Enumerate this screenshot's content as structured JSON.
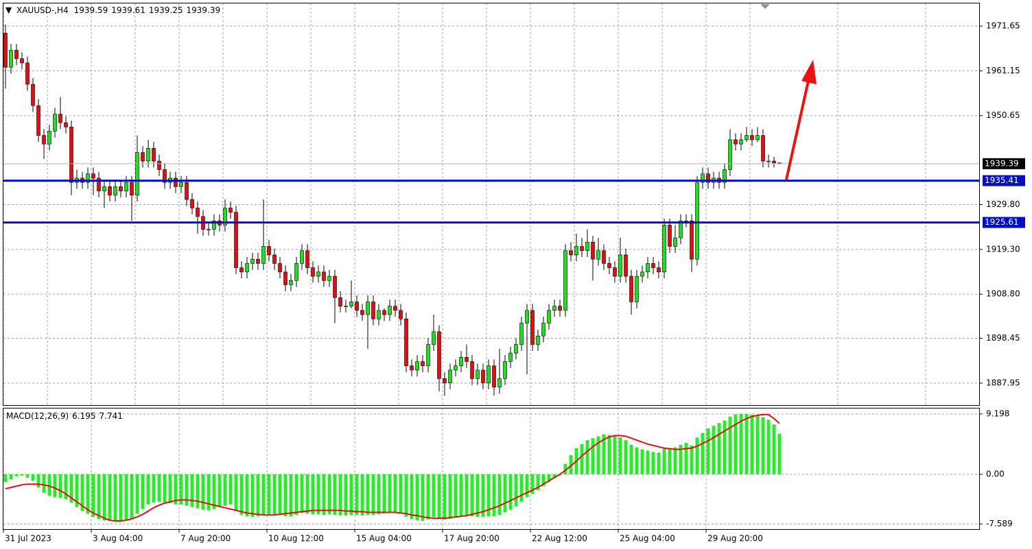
{
  "chart_data": [
    {
      "type": "candlestick",
      "title": "XAUUSD-,H4",
      "open": [
        1970,
        1962,
        1966,
        1964,
        1963,
        1958,
        1953,
        1946,
        1944,
        1947,
        1951,
        1949,
        1948,
        1935,
        1936,
        1935,
        1937,
        1936,
        1933,
        1934,
        1932,
        1934,
        1933,
        1935,
        1932,
        1942,
        1940,
        1943,
        1940,
        1938,
        1935,
        1936,
        1934,
        1935,
        1931,
        1929,
        1927,
        1924,
        1924,
        1926,
        1925,
        1929,
        1928,
        1915,
        1914,
        1916,
        1917,
        1916,
        1920,
        1918,
        1916,
        1914,
        1911,
        1912,
        1916,
        1919,
        1915,
        1913,
        1914,
        1912,
        1913,
        1908,
        1906,
        1906,
        1907,
        1905,
        1904,
        1907,
        1903,
        1905,
        1904,
        1906,
        1905,
        1903,
        1892,
        1891,
        1893,
        1892,
        1897,
        1900,
        1889,
        1888,
        1891,
        1892,
        1894,
        1893,
        1889,
        1891,
        1888,
        1892,
        1887,
        1889,
        1893,
        1895,
        1897,
        1902,
        1905,
        1897,
        1899,
        1902,
        1905,
        1906,
        1905,
        1919,
        1918,
        1920,
        1919,
        1921,
        1917,
        1919,
        1916,
        1915,
        1913,
        1918,
        1913,
        1907,
        1913,
        1914,
        1916,
        1915,
        1914,
        1925,
        1920,
        1922,
        1926,
        1926,
        1917,
        1935,
        1937,
        1935,
        1936,
        1935,
        1938,
        1945,
        1944,
        1945,
        1946,
        1945,
        1946,
        1940,
        1940,
        1939.59
      ],
      "high": [
        1972,
        1967.5,
        1967.5,
        1965.5,
        1964.5,
        1959.5,
        1954.5,
        1947.5,
        1948.5,
        1952.5,
        1955,
        1950.5,
        1949.5,
        1938,
        1937.5,
        1938.5,
        1938.5,
        1937.5,
        1935.5,
        1935.5,
        1935.5,
        1935.5,
        1936.5,
        1936.5,
        1946,
        1943.5,
        1945,
        1944.5,
        1941.5,
        1939.5,
        1937.5,
        1937.5,
        1936.5,
        1936.5,
        1932.5,
        1930.5,
        1928.5,
        1925.5,
        1927.5,
        1927.5,
        1931,
        1930.5,
        1929.5,
        1916.5,
        1917.5,
        1918.5,
        1918.5,
        1931,
        1921.5,
        1919.5,
        1917.5,
        1915.5,
        1913.5,
        1917.5,
        1920.5,
        1920.5,
        1916.5,
        1915.5,
        1915.5,
        1914.5,
        1914.5,
        1909.5,
        1907.5,
        1912,
        1908.5,
        1906.5,
        1908.5,
        1908.5,
        1906.5,
        1905.5,
        1907.5,
        1907.5,
        1906.5,
        1904.5,
        1893.5,
        1894.5,
        1894.5,
        1898.5,
        1904,
        1901.5,
        1890.5,
        1892.5,
        1893.5,
        1895.5,
        1897,
        1894.5,
        1892.5,
        1892.5,
        1893.5,
        1893.5,
        1896,
        1894.5,
        1896.5,
        1898.5,
        1903.5,
        1906.5,
        1906.5,
        1900.5,
        1903.5,
        1906.5,
        1907.5,
        1907.5,
        1920.5,
        1921,
        1923,
        1922,
        1924,
        1922.5,
        1922,
        1920.5,
        1917.5,
        1916.5,
        1922,
        1919.5,
        1914.5,
        1914.5,
        1915.5,
        1917.5,
        1917.5,
        1916.5,
        1926.5,
        1926.5,
        1925,
        1927.5,
        1927.5,
        1927.5,
        1936.5,
        1938.5,
        1938.5,
        1937.5,
        1937.5,
        1939.5,
        1947.5,
        1946.5,
        1946.5,
        1948,
        1947.5,
        1948,
        1947.5,
        1941.5,
        1941,
        1939.61
      ],
      "low": [
        1957,
        1960.5,
        1962.5,
        1961.5,
        1956.5,
        1951.5,
        1944.5,
        1940.5,
        1942.5,
        1945.5,
        1947.5,
        1946.5,
        1932,
        1933.5,
        1933.5,
        1933.5,
        1932,
        1931.5,
        1929,
        1930.5,
        1930.5,
        1931.5,
        1931.5,
        1926,
        1930.5,
        1938.5,
        1938.5,
        1938.5,
        1936.5,
        1933.5,
        1933.5,
        1932.5,
        1932.5,
        1929.5,
        1927.5,
        1923,
        1922.5,
        1922.5,
        1922.5,
        1923.5,
        1923.5,
        1926.5,
        1913.5,
        1912.5,
        1912.5,
        1914.5,
        1914.5,
        1914.5,
        1916.5,
        1914.5,
        1912.5,
        1909.5,
        1909.5,
        1910.5,
        1914.5,
        1913.5,
        1911.5,
        1911.5,
        1910.5,
        1910.5,
        1902,
        1904.5,
        1904.5,
        1905.5,
        1903.5,
        1902.5,
        1896,
        1901.5,
        1901.5,
        1902.5,
        1902.5,
        1903.5,
        1901.5,
        1890.5,
        1889.5,
        1889.5,
        1890.5,
        1890.5,
        1895.5,
        1886,
        1885,
        1886.5,
        1889.5,
        1890.5,
        1891.5,
        1887.5,
        1887.5,
        1886.5,
        1886.5,
        1885,
        1885.5,
        1887.5,
        1891.5,
        1893.5,
        1895.5,
        1890,
        1895.5,
        1895.5,
        1897.5,
        1900.5,
        1903.5,
        1903.5,
        1903.5,
        1916.5,
        1916.5,
        1917.5,
        1917.5,
        1912,
        1915.5,
        1914.5,
        1913.5,
        1911.5,
        1911.5,
        1911.5,
        1904,
        1905.5,
        1911.5,
        1912.5,
        1913.5,
        1912.5,
        1912.5,
        1918.5,
        1918.5,
        1920.5,
        1924.5,
        1914,
        1915.5,
        1933.5,
        1933.5,
        1933.5,
        1933.5,
        1933.5,
        1936.5,
        1942.5,
        1942.5,
        1944.5,
        1943.5,
        1944.5,
        1938.5,
        1938.5,
        1938.5,
        1939.25
      ],
      "close": [
        1962,
        1966,
        1964,
        1963,
        1958,
        1953,
        1946,
        1944,
        1947,
        1951,
        1949,
        1948,
        1935,
        1936,
        1935,
        1937,
        1936,
        1933,
        1934,
        1932,
        1934,
        1933,
        1935,
        1932,
        1942,
        1940,
        1943,
        1940,
        1938,
        1935,
        1936,
        1934,
        1935,
        1931,
        1929,
        1927,
        1924,
        1924,
        1926,
        1925,
        1929,
        1928,
        1915,
        1914,
        1916,
        1917,
        1916,
        1920,
        1918,
        1916,
        1914,
        1911,
        1912,
        1916,
        1919,
        1915,
        1913,
        1914,
        1912,
        1913,
        1908,
        1906,
        1906,
        1907,
        1905,
        1904,
        1907,
        1903,
        1905,
        1904,
        1906,
        1905,
        1903,
        1892,
        1891,
        1893,
        1892,
        1897,
        1900,
        1889,
        1888,
        1891,
        1892,
        1894,
        1893,
        1889,
        1891,
        1888,
        1892,
        1887,
        1889,
        1893,
        1895,
        1897,
        1902,
        1905,
        1897,
        1899,
        1902,
        1905,
        1906,
        1905,
        1919,
        1918,
        1920,
        1919,
        1921,
        1917,
        1919,
        1916,
        1915,
        1913,
        1918,
        1913,
        1907,
        1913,
        1914,
        1916,
        1915,
        1914,
        1925,
        1920,
        1922,
        1926,
        1926,
        1917,
        1935,
        1937,
        1935,
        1936,
        1935,
        1938,
        1945,
        1944,
        1945,
        1946,
        1945,
        1946,
        1940,
        1940,
        1939.59,
        1939.39
      ],
      "up_color": "#22dd22",
      "down_color": "#dd1111",
      "ylim": [
        1882.8,
        1976.96
      ],
      "yticks": [
        1971.65,
        1961.15,
        1950.65,
        {
          "value": 1929.8,
          "label": "1929.80"
        },
        {
          "value": 1919.3,
          "label": "1919.30"
        },
        {
          "value": 1908.8,
          "label": "1908.80"
        },
        1898.45,
        1887.95
      ],
      "levels": [
        {
          "value": 1935.41,
          "color": "#0010c0"
        },
        {
          "value": 1925.61,
          "color": "#0010c0"
        }
      ],
      "grid": true
    },
    {
      "type": "macd",
      "title": "MACD(12,26,9)",
      "macd": {
        "color": "#2ee82e",
        "values": [
          -1.2,
          -0.8,
          -0.3,
          -0.2,
          -0.5,
          -1,
          -2,
          -2.8,
          -3.3,
          -3.5,
          -3.6,
          -3.8,
          -4.3,
          -5,
          -5.6,
          -6,
          -6.5,
          -6.8,
          -7,
          -7.1,
          -7.2,
          -7.1,
          -6.9,
          -6.8,
          -6,
          -5.3,
          -4.6,
          -4.3,
          -4.2,
          -4.3,
          -4.4,
          -4.6,
          -4.6,
          -4.8,
          -5,
          -5.2,
          -5.4,
          -5.5,
          -5.3,
          -5,
          -4.8,
          -4.6,
          -5.5,
          -6.2,
          -6.4,
          -6.5,
          -6.4,
          -6.2,
          -6.1,
          -6.1,
          -6.2,
          -6.4,
          -6.4,
          -6.2,
          -5.9,
          -6,
          -6.1,
          -6.1,
          -6.2,
          -6.1,
          -6.2,
          -6.3,
          -6.3,
          -6.2,
          -6.2,
          -6.3,
          -6.2,
          -6.2,
          -6.1,
          -6,
          -5.9,
          -5.9,
          -6,
          -6.5,
          -6.8,
          -7,
          -7.1,
          -6.9,
          -6.5,
          -6.7,
          -6.9,
          -6.8,
          -6.6,
          -6.4,
          -6.3,
          -6.4,
          -6.5,
          -6.5,
          -6.4,
          -6.4,
          -6.2,
          -5.8,
          -5.4,
          -4.9,
          -4.2,
          -3.5,
          -3,
          -2.4,
          -1.8,
          -1.2,
          -0.6,
          -0.1,
          1.6,
          2.9,
          4,
          4.6,
          5.2,
          5.5,
          5.8,
          6.1,
          6,
          5.8,
          5.6,
          5.2,
          4.5,
          4.1,
          3.8,
          3.6,
          3.4,
          3.3,
          3.9,
          3.9,
          4.1,
          4.5,
          4.8,
          4.4,
          5.6,
          6.3,
          7,
          7.4,
          7.8,
          8.2,
          8.8,
          9.1,
          9.2,
          9.2,
          9.1,
          9,
          8.7,
          8.3,
          7.6,
          6.195
        ]
      },
      "signal": {
        "color": "#e01010",
        "values": [
          -2.2,
          -2,
          -1.8,
          -1.6,
          -1.5,
          -1.5,
          -1.5,
          -1.6,
          -1.8,
          -2.1,
          -2.5,
          -3,
          -3.6,
          -4.2,
          -4.8,
          -5.4,
          -5.9,
          -6.3,
          -6.7,
          -7,
          -7.1,
          -7.1,
          -7,
          -6.8,
          -6.5,
          -6.1,
          -5.6,
          -5.1,
          -4.7,
          -4.4,
          -4.2,
          -4,
          -3.9,
          -3.9,
          -4,
          -4.1,
          -4.3,
          -4.5,
          -4.7,
          -4.9,
          -5.1,
          -5.3,
          -5.5,
          -5.7,
          -5.9,
          -6,
          -6.1,
          -6.2,
          -6.2,
          -6.2,
          -6.1,
          -6,
          -5.9,
          -5.8,
          -5.7,
          -5.6,
          -5.5,
          -5.5,
          -5.5,
          -5.5,
          -5.5,
          -5.5,
          -5.6,
          -5.6,
          -5.7,
          -5.7,
          -5.8,
          -5.8,
          -5.8,
          -5.8,
          -5.8,
          -5.8,
          -5.9,
          -6,
          -6.2,
          -6.3,
          -6.5,
          -6.6,
          -6.7,
          -6.7,
          -6.7,
          -6.6,
          -6.5,
          -6.4,
          -6.3,
          -6.1,
          -5.9,
          -5.7,
          -5.4,
          -5.1,
          -4.8,
          -4.4,
          -4,
          -3.6,
          -3.2,
          -2.8,
          -2.4,
          -2,
          -1.5,
          -1,
          -0.5,
          0,
          0.6,
          1.3,
          2,
          2.8,
          3.5,
          4.2,
          4.8,
          5.3,
          5.7,
          5.9,
          5.9,
          5.8,
          5.5,
          5.2,
          4.9,
          4.6,
          4.4,
          4.2,
          4,
          3.9,
          3.8,
          3.8,
          3.9,
          4,
          4.3,
          4.7,
          5.1,
          5.6,
          6.1,
          6.6,
          7.1,
          7.6,
          8.1,
          8.5,
          8.8,
          9,
          9.1,
          9.1,
          8.5,
          7.741
        ]
      },
      "ylim": [
        -8.36,
        10.03
      ],
      "yticks": [
        9.198,
        {
          "value": 0,
          "label": "0.00"
        },
        -7.589
      ],
      "xticks": [
        {
          "value": 0,
          "label": "31 Jul 2023"
        },
        {
          "value": 16,
          "label": "3 Aug 04:00"
        },
        {
          "value": 32,
          "label": "7 Aug 20:00"
        },
        {
          "value": 48,
          "label": "10 Aug 12:00"
        },
        {
          "value": 64,
          "label": "15 Aug 04:00"
        },
        {
          "value": 80,
          "label": "17 Aug 20:00"
        },
        {
          "value": 96,
          "label": "22 Aug 12:00"
        },
        {
          "value": 112,
          "label": "25 Aug 04:00"
        },
        {
          "value": 128,
          "label": "29 Aug 20:00"
        }
      ],
      "grid": true
    }
  ]
}
